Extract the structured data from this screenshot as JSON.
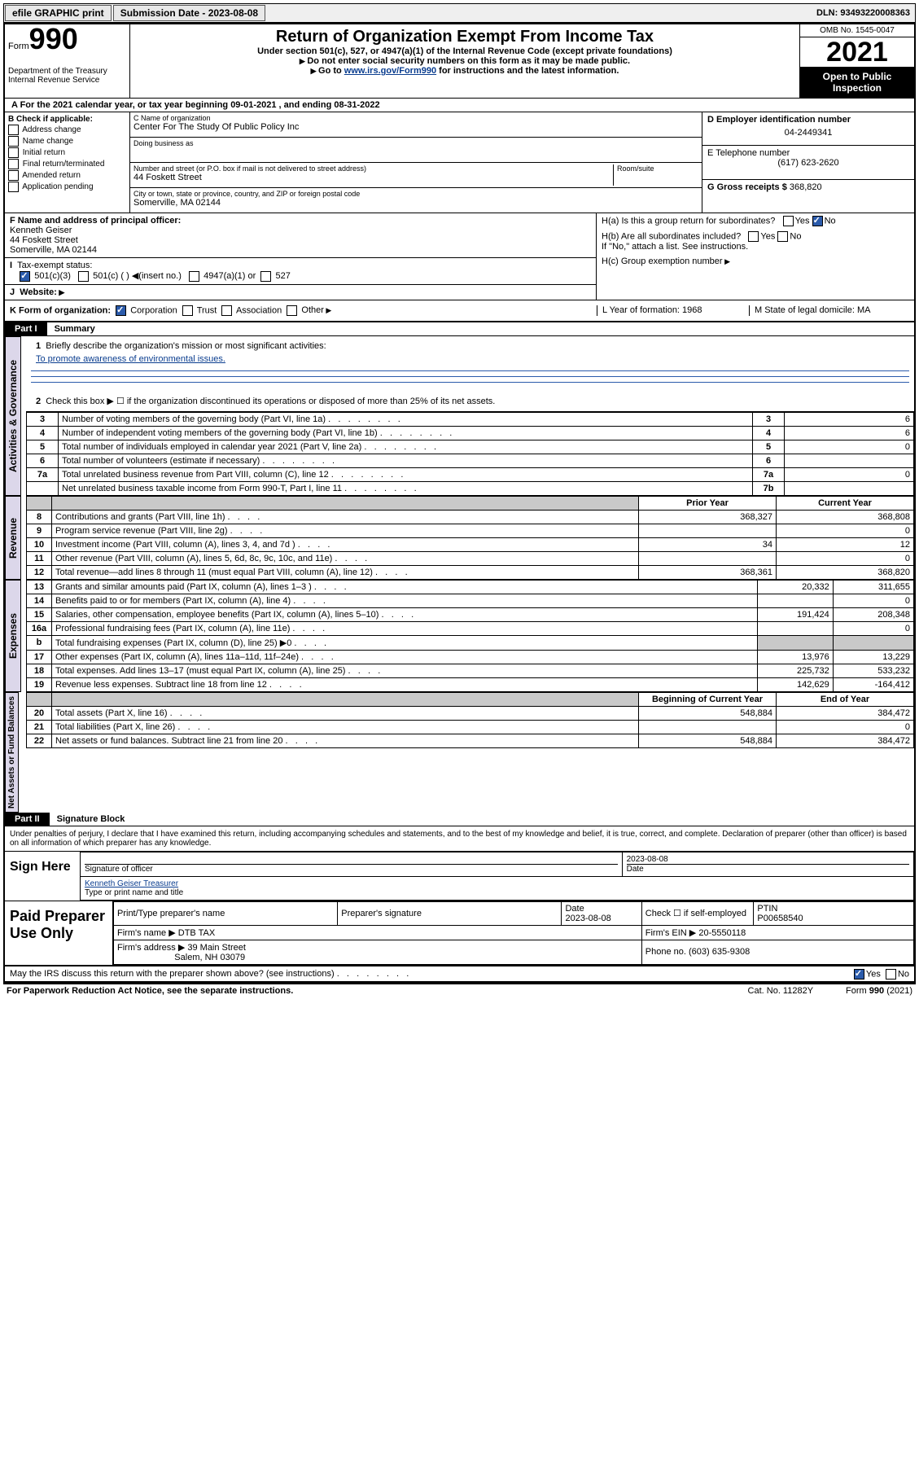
{
  "topbar": {
    "efile": "efile GRAPHIC print",
    "sub_label": "Submission Date - 2023-08-08",
    "dln_label": "DLN: 93493220008363"
  },
  "header": {
    "form_word": "Form",
    "form_num": "990",
    "dept": "Department of the Treasury Internal Revenue Service",
    "title": "Return of Organization Exempt From Income Tax",
    "sub": "Under section 501(c), 527, or 4947(a)(1) of the Internal Revenue Code (except private foundations)",
    "arrow1": "Do not enter social security numbers on this form as it may be made public.",
    "arrow2_pre": "Go to ",
    "arrow2_link": "www.irs.gov/Form990",
    "arrow2_post": " for instructions and the latest information.",
    "omb": "OMB No. 1545-0047",
    "year": "2021",
    "open": "Open to Public Inspection"
  },
  "rowA": "A For the 2021 calendar year, or tax year beginning 09-01-2021   , and ending 08-31-2022",
  "colB": {
    "head": "B Check if applicable:",
    "items": [
      "Address change",
      "Name change",
      "Initial return",
      "Final return/terminated",
      "Amended return",
      "Application pending"
    ]
  },
  "colC": {
    "name_label": "C Name of organization",
    "name": "Center For The Study Of Public Policy Inc",
    "dba_label": "Doing business as",
    "addr_label": "Number and street (or P.O. box if mail is not delivered to street address)",
    "room_label": "Room/suite",
    "addr": "44 Foskett Street",
    "city_label": "City or town, state or province, country, and ZIP or foreign postal code",
    "city": "Somerville, MA  02144"
  },
  "colD": {
    "label": "D Employer identification number",
    "val": "04-2449341"
  },
  "colE": {
    "label": "E Telephone number",
    "val": "(617) 623-2620"
  },
  "colG": {
    "label": "G Gross receipts $",
    "val": "368,820"
  },
  "colF": {
    "label": "F Name and address of principal officer:",
    "name": "Kenneth Geiser",
    "addr1": "44 Foskett Street",
    "addr2": "Somerville, MA  02144"
  },
  "colH": {
    "a": "H(a)  Is this a group return for subordinates?",
    "b": "H(b)  Are all subordinates included?",
    "b_note": "If \"No,\" attach a list. See instructions.",
    "c": "H(c)  Group exemption number"
  },
  "rowI": {
    "label": "Tax-exempt status:",
    "opts": [
      "501(c)(3)",
      "501(c) (  )",
      "(insert no.)",
      "4947(a)(1) or",
      "527"
    ]
  },
  "rowJ": "Website:",
  "rowK": {
    "label": "K Form of organization:",
    "opts": [
      "Corporation",
      "Trust",
      "Association",
      "Other"
    ],
    "L": "L Year of formation: 1968",
    "M": "M State of legal domicile: MA"
  },
  "part1": {
    "num": "Part I",
    "title": "Summary"
  },
  "summary": {
    "activities_label": "Activities & Governance",
    "line1": "Briefly describe the organization's mission or most significant activities:",
    "line1_text": "To promote awareness of environmental issues.",
    "line2": "Check this box ▶ ☐  if the organization discontinued its operations or disposed of more than 25% of its net assets.",
    "rows_top": [
      {
        "n": "3",
        "desc": "Number of voting members of the governing body (Part VI, line 1a)",
        "box": "3",
        "val": "6"
      },
      {
        "n": "4",
        "desc": "Number of independent voting members of the governing body (Part VI, line 1b)",
        "box": "4",
        "val": "6"
      },
      {
        "n": "5",
        "desc": "Total number of individuals employed in calendar year 2021 (Part V, line 2a)",
        "box": "5",
        "val": "0"
      },
      {
        "n": "6",
        "desc": "Total number of volunteers (estimate if necessary)",
        "box": "6",
        "val": ""
      },
      {
        "n": "7a",
        "desc": "Total unrelated business revenue from Part VIII, column (C), line 12",
        "box": "7a",
        "val": "0"
      },
      {
        "n": "",
        "desc": "Net unrelated business taxable income from Form 990-T, Part I, line 11",
        "box": "7b",
        "val": ""
      }
    ],
    "revenue_label": "Revenue",
    "col_prior": "Prior Year",
    "col_current": "Current Year",
    "rev_rows": [
      {
        "n": "8",
        "desc": "Contributions and grants (Part VIII, line 1h)",
        "p": "368,327",
        "c": "368,808"
      },
      {
        "n": "9",
        "desc": "Program service revenue (Part VIII, line 2g)",
        "p": "",
        "c": "0"
      },
      {
        "n": "10",
        "desc": "Investment income (Part VIII, column (A), lines 3, 4, and 7d )",
        "p": "34",
        "c": "12"
      },
      {
        "n": "11",
        "desc": "Other revenue (Part VIII, column (A), lines 5, 6d, 8c, 9c, 10c, and 11e)",
        "p": "",
        "c": "0"
      },
      {
        "n": "12",
        "desc": "Total revenue—add lines 8 through 11 (must equal Part VIII, column (A), line 12)",
        "p": "368,361",
        "c": "368,820"
      }
    ],
    "expenses_label": "Expenses",
    "exp_rows": [
      {
        "n": "13",
        "desc": "Grants and similar amounts paid (Part IX, column (A), lines 1–3 )",
        "p": "20,332",
        "c": "311,655"
      },
      {
        "n": "14",
        "desc": "Benefits paid to or for members (Part IX, column (A), line 4)",
        "p": "",
        "c": "0"
      },
      {
        "n": "15",
        "desc": "Salaries, other compensation, employee benefits (Part IX, column (A), lines 5–10)",
        "p": "191,424",
        "c": "208,348"
      },
      {
        "n": "16a",
        "desc": "Professional fundraising fees (Part IX, column (A), line 11e)",
        "p": "",
        "c": "0"
      },
      {
        "n": "b",
        "desc": "Total fundraising expenses (Part IX, column (D), line 25) ▶0",
        "p": "shade",
        "c": "shade"
      },
      {
        "n": "17",
        "desc": "Other expenses (Part IX, column (A), lines 11a–11d, 11f–24e)",
        "p": "13,976",
        "c": "13,229"
      },
      {
        "n": "18",
        "desc": "Total expenses. Add lines 13–17 (must equal Part IX, column (A), line 25)",
        "p": "225,732",
        "c": "533,232"
      },
      {
        "n": "19",
        "desc": "Revenue less expenses. Subtract line 18 from line 12",
        "p": "142,629",
        "c": "-164,412"
      }
    ],
    "net_label": "Net Assets or Fund Balances",
    "col_begin": "Beginning of Current Year",
    "col_end": "End of Year",
    "net_rows": [
      {
        "n": "20",
        "desc": "Total assets (Part X, line 16)",
        "p": "548,884",
        "c": "384,472"
      },
      {
        "n": "21",
        "desc": "Total liabilities (Part X, line 26)",
        "p": "",
        "c": "0"
      },
      {
        "n": "22",
        "desc": "Net assets or fund balances. Subtract line 21 from line 20",
        "p": "548,884",
        "c": "384,472"
      }
    ]
  },
  "part2": {
    "num": "Part II",
    "title": "Signature Block"
  },
  "sig": {
    "decl": "Under penalties of perjury, I declare that I have examined this return, including accompanying schedules and statements, and to the best of my knowledge and belief, it is true, correct, and complete. Declaration of preparer (other than officer) is based on all information of which preparer has any knowledge.",
    "sign_here": "Sign Here",
    "sig_officer": "Signature of officer",
    "date": "Date",
    "date_val": "2023-08-08",
    "name": "Kenneth Geiser Treasurer",
    "name_label": "Type or print name and title"
  },
  "paid": {
    "label": "Paid Preparer Use Only",
    "col1": "Print/Type preparer's name",
    "col2": "Preparer's signature",
    "col3": "Date",
    "col3_val": "2023-08-08",
    "col4_a": "Check ☐ if self-employed",
    "col5": "PTIN",
    "col5_val": "P00658540",
    "firm_name_label": "Firm's name   ▶",
    "firm_name": "DTB TAX",
    "firm_ein_label": "Firm's EIN ▶",
    "firm_ein": "20-5550118",
    "firm_addr_label": "Firm's address ▶",
    "firm_addr1": "39 Main Street",
    "firm_addr2": "Salem, NH  03079",
    "phone_label": "Phone no.",
    "phone": "(603) 635-9308",
    "may_irs": "May the IRS discuss this return with the preparer shown above? (see instructions)"
  },
  "footer": {
    "left": "For Paperwork Reduction Act Notice, see the separate instructions.",
    "mid": "Cat. No. 11282Y",
    "right": "Form 990 (2021)"
  }
}
